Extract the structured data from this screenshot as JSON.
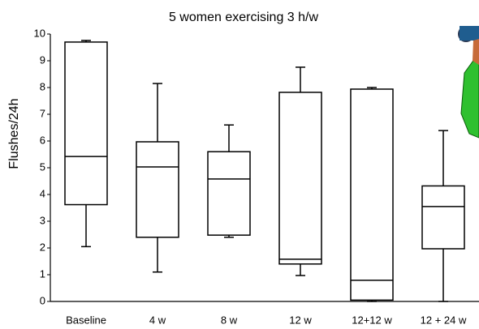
{
  "chart_data": {
    "type": "box",
    "title": "5 women exercising 3 h/w",
    "y_label": "Flushes/24h",
    "categories": [
      "Baseline",
      "4 w",
      "8 w",
      "12 w",
      "12+12 w",
      "12 + 24 w"
    ],
    "min": [
      2.05,
      1.1,
      2.4,
      0.97,
      0,
      0
    ],
    "q1": [
      3.62,
      2.4,
      2.48,
      1.4,
      0.05,
      1.97
    ],
    "median": [
      5.42,
      5.03,
      4.58,
      1.58,
      0.79,
      3.55
    ],
    "q3": [
      9.7,
      5.97,
      5.6,
      7.82,
      7.94,
      4.32
    ],
    "max": [
      9.76,
      8.15,
      6.6,
      8.76,
      8.0,
      6.39
    ],
    "ylim": [
      0,
      10
    ],
    "yticks": [
      0,
      1,
      2,
      3,
      4,
      5,
      6,
      7,
      8,
      9,
      10
    ],
    "color": "#ffffff"
  }
}
